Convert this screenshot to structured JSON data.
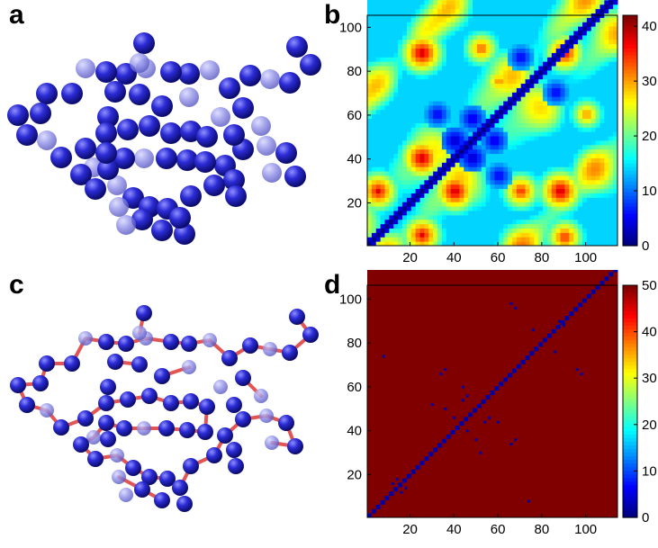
{
  "panels": [
    {
      "letter": "a"
    },
    {
      "letter": "b"
    },
    {
      "letter": "c"
    },
    {
      "letter": "d"
    }
  ],
  "colors": {
    "bead": "#2b2bd6",
    "bead_light": "#8a8ae6",
    "bond": "#e25555",
    "map_high": "#8b0000",
    "map_low": "#00008f"
  },
  "chart_data": [
    {
      "type": "heatmap",
      "panel": "b",
      "title": "",
      "xlabel": "",
      "ylabel": "",
      "n": 114,
      "xlim": [
        1,
        114
      ],
      "ylim": [
        1,
        114
      ],
      "xticks": [
        20,
        40,
        60,
        80,
        100
      ],
      "yticks": [
        20,
        40,
        60,
        80,
        100
      ],
      "colorbar": {
        "min": 0,
        "max": 42,
        "ticks": [
          0,
          10,
          20,
          30,
          40
        ]
      },
      "hotspots": [
        {
          "x": 25,
          "y": 40,
          "value": 40
        },
        {
          "x": 40,
          "y": 25,
          "value": 40
        },
        {
          "x": 25,
          "y": 88,
          "value": 40
        },
        {
          "x": 88,
          "y": 25,
          "value": 40
        },
        {
          "x": 90,
          "y": 88,
          "value": 38
        },
        {
          "x": 5,
          "y": 25,
          "value": 38
        },
        {
          "x": 25,
          "y": 5,
          "value": 38
        },
        {
          "x": 70,
          "y": 25,
          "value": 36
        },
        {
          "x": 90,
          "y": 4,
          "value": 36
        },
        {
          "x": 52,
          "y": 90,
          "value": 34
        },
        {
          "x": 60,
          "y": 75,
          "value": 32
        },
        {
          "x": 100,
          "y": 60,
          "value": 32
        }
      ],
      "lowspots": [
        {
          "x": 40,
          "y": 48,
          "value": 2
        },
        {
          "x": 48,
          "y": 40,
          "value": 2
        },
        {
          "x": 48,
          "y": 58,
          "value": 3
        },
        {
          "x": 58,
          "y": 48,
          "value": 3
        },
        {
          "x": 32,
          "y": 60,
          "value": 4
        },
        {
          "x": 60,
          "y": 32,
          "value": 4
        },
        {
          "x": 70,
          "y": 86,
          "value": 4
        },
        {
          "x": 86,
          "y": 70,
          "value": 4
        }
      ],
      "diagonal_value": 0
    },
    {
      "type": "heatmap",
      "panel": "d",
      "title": "",
      "xlabel": "",
      "ylabel": "",
      "n": 114,
      "xlim": [
        1,
        114
      ],
      "ylim": [
        1,
        114
      ],
      "xticks": [
        20,
        40,
        60,
        80,
        100
      ],
      "yticks": [
        20,
        40,
        60,
        80,
        100
      ],
      "colorbar": {
        "min": 0,
        "max": 50,
        "ticks": [
          0,
          10,
          20,
          30,
          40,
          50
        ]
      },
      "background_value": 50,
      "diagonal_value": 2,
      "contacts": [
        {
          "x": 8,
          "y": 74
        },
        {
          "x": 74,
          "y": 8
        },
        {
          "x": 12,
          "y": 16
        },
        {
          "x": 16,
          "y": 12
        },
        {
          "x": 14,
          "y": 18
        },
        {
          "x": 18,
          "y": 14
        },
        {
          "x": 34,
          "y": 66
        },
        {
          "x": 66,
          "y": 34
        },
        {
          "x": 36,
          "y": 68
        },
        {
          "x": 68,
          "y": 36
        },
        {
          "x": 30,
          "y": 52
        },
        {
          "x": 52,
          "y": 30
        },
        {
          "x": 44,
          "y": 60
        },
        {
          "x": 60,
          "y": 44
        },
        {
          "x": 46,
          "y": 56
        },
        {
          "x": 56,
          "y": 46
        },
        {
          "x": 50,
          "y": 36
        },
        {
          "x": 36,
          "y": 50
        },
        {
          "x": 66,
          "y": 98
        },
        {
          "x": 98,
          "y": 66
        },
        {
          "x": 68,
          "y": 96
        },
        {
          "x": 96,
          "y": 68
        },
        {
          "x": 88,
          "y": 90
        },
        {
          "x": 90,
          "y": 88
        },
        {
          "x": 76,
          "y": 86
        },
        {
          "x": 86,
          "y": 76
        },
        {
          "x": 54,
          "y": 44
        },
        {
          "x": 44,
          "y": 54
        },
        {
          "x": 40,
          "y": 46
        },
        {
          "x": 46,
          "y": 40
        }
      ]
    }
  ]
}
